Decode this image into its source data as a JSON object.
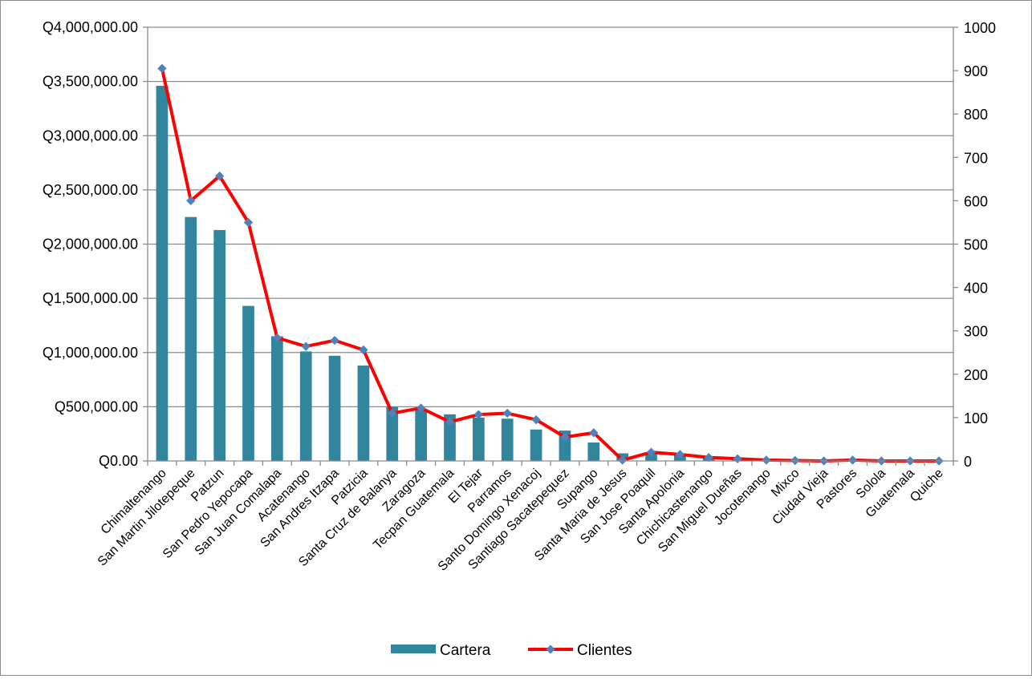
{
  "chart_data": {
    "type": "bar+line",
    "categories": [
      "Chimaltenango",
      "San Martin Jilotepeque",
      "Patzun",
      "San Pedro Yepocapa",
      "San Juan Comalapa",
      "Acatenango",
      "San Andres Itzapa",
      "Patzicia",
      "Santa Cruz de Balanya",
      "Zaragoza",
      "Tecpan Guatemala",
      "El Tejar",
      "Parramos",
      "Santo Domingo Xenacoj",
      "Santiago Sacatepequez",
      "Supango",
      "Santa Maria de Jesus",
      "San Jose Poaquil",
      "Santa Apolonia",
      "Chichicastenango",
      "San Miguel Dueñas",
      "Jocotenango",
      "Mixco",
      "Ciudad Vieja",
      "Pastores",
      "Solola",
      "Guatemala",
      "Quiche"
    ],
    "series": [
      {
        "name": "Cartera",
        "type": "bar",
        "axis": "left",
        "color": "#31859c",
        "values": [
          3460000,
          2250000,
          2130000,
          1430000,
          1150000,
          1010000,
          970000,
          880000,
          500000,
          480000,
          430000,
          400000,
          390000,
          290000,
          280000,
          170000,
          70000,
          80000,
          60000,
          40000,
          30000,
          20000,
          15000,
          10000,
          20000,
          10000,
          8000,
          5000
        ]
      },
      {
        "name": "Clientes",
        "type": "line",
        "axis": "right",
        "color": "#ff0000",
        "marker_color": "#4f81bd",
        "values": [
          905,
          600,
          657,
          550,
          284,
          264,
          278,
          256,
          110,
          122,
          90,
          107,
          110,
          95,
          55,
          65,
          2,
          20,
          15,
          8,
          5,
          2,
          1,
          0,
          2,
          0,
          0,
          0
        ]
      }
    ],
    "y_left": {
      "min": 0,
      "max": 4000000,
      "step": 500000,
      "tick_labels": [
        "Q0.00",
        "Q500,000.00",
        "Q1,000,000.00",
        "Q1,500,000.00",
        "Q2,000,000.00",
        "Q2,500,000.00",
        "Q3,000,000.00",
        "Q3,500,000.00",
        "Q4,000,000.00"
      ]
    },
    "y_right": {
      "min": 0,
      "max": 1000,
      "step": 100,
      "tick_labels": [
        "0",
        "100",
        "200",
        "300",
        "400",
        "500",
        "600",
        "700",
        "800",
        "900",
        "1000"
      ]
    },
    "grid": true,
    "legend_position": "bottom",
    "legend": [
      {
        "label": "Cartera"
      },
      {
        "label": "Clientes"
      }
    ]
  }
}
